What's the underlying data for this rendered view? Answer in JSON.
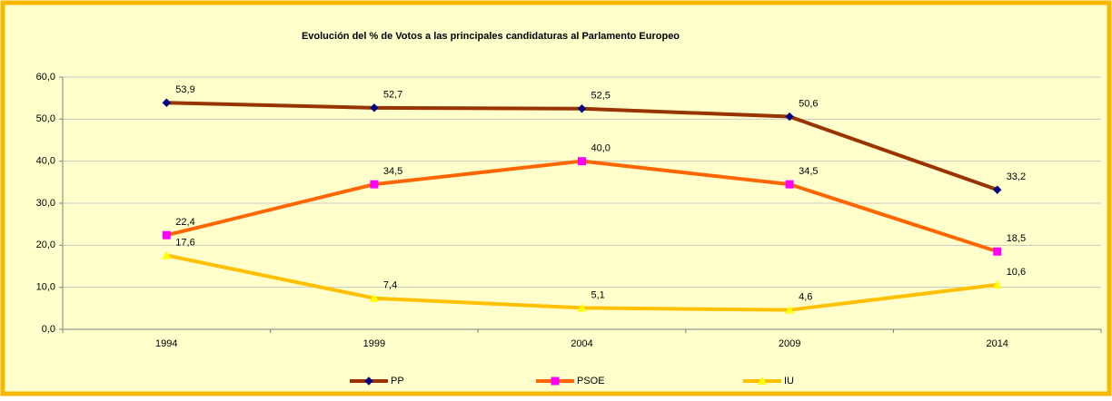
{
  "chart_data": {
    "type": "line",
    "title": "Evolución del % de Votos a las principales candidaturas al Parlamento Europeo",
    "categories": [
      "1994",
      "1999",
      "2004",
      "2009",
      "2014"
    ],
    "series": [
      {
        "name": "PP",
        "color": "#993300",
        "marker": "diamond",
        "marker_color": "#000080",
        "values": [
          53.9,
          52.7,
          52.5,
          50.6,
          33.2
        ],
        "value_labels": [
          "53,9",
          "52,7",
          "52,5",
          "50,6",
          "33,2"
        ]
      },
      {
        "name": "PSOE",
        "color": "#FF6600",
        "marker": "square",
        "marker_color": "#FF00FF",
        "values": [
          22.4,
          34.5,
          40.0,
          34.5,
          18.5
        ],
        "value_labels": [
          "22,4",
          "34,5",
          "40,0",
          "34,5",
          "18,5"
        ]
      },
      {
        "name": "IU",
        "color": "#FFC000",
        "marker": "triangle",
        "marker_color": "#FFFF00",
        "values": [
          17.6,
          7.4,
          5.1,
          4.6,
          10.6
        ],
        "value_labels": [
          "17,6",
          "7,4",
          "5,1",
          "4,6",
          "10,6"
        ]
      }
    ],
    "ylim": [
      0,
      60
    ],
    "yticks": [
      {
        "value": 0,
        "label": "0,0"
      },
      {
        "value": 10,
        "label": "10,0"
      },
      {
        "value": 20,
        "label": "20,0"
      },
      {
        "value": 30,
        "label": "30,0"
      },
      {
        "value": 40,
        "label": "40,0"
      },
      {
        "value": 50,
        "label": "50,0"
      },
      {
        "value": 60,
        "label": "60,0"
      }
    ],
    "grid": true,
    "legend": "bottom"
  }
}
